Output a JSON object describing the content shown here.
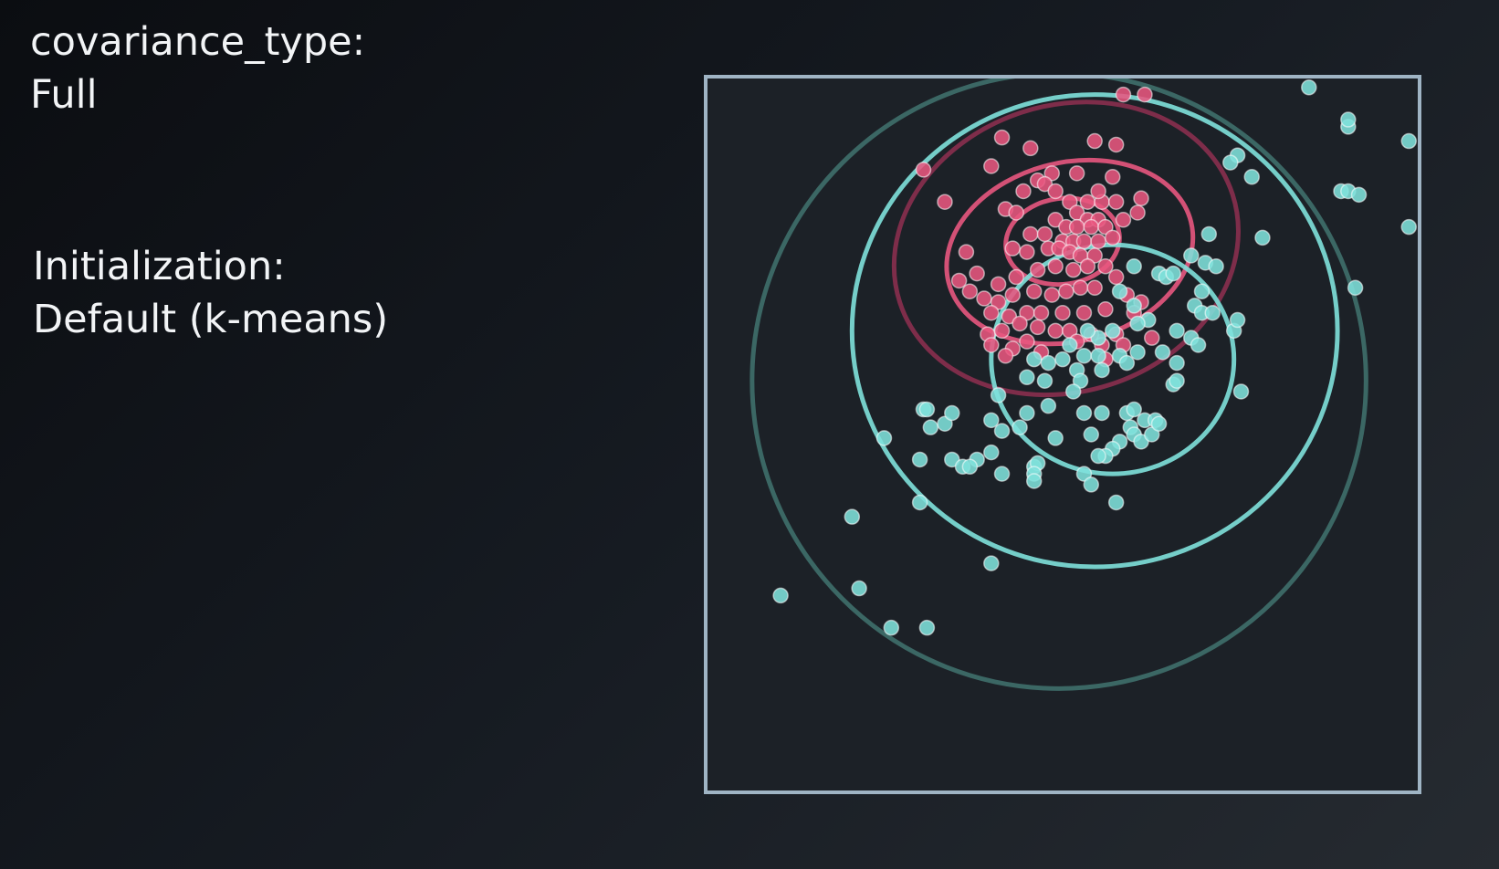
{
  "labels": {
    "covariance_title": "covariance_type:",
    "covariance_value": "Full",
    "init_title": "Initialization:",
    "init_value": "Default (k-means)"
  },
  "colors": {
    "frame": "#9fb4c4",
    "cluster_pink": "#e8577f",
    "cluster_teal": "#7fe1dc",
    "ellipse_pink_outer": "#8a2f4f",
    "ellipse_teal_outer": "#3f6f6c"
  },
  "chart_data": {
    "type": "scatter",
    "xlim": [
      0,
      100
    ],
    "ylim": [
      0,
      100
    ],
    "grid": false,
    "series": [
      {
        "cluster": "pink",
        "color": "#e8577f",
        "points": [
          [
            58.5,
            97.5
          ],
          [
            61.5,
            97.5
          ],
          [
            41.5,
            91.5
          ],
          [
            54.5,
            91
          ],
          [
            57.5,
            90.5
          ],
          [
            45.5,
            90
          ],
          [
            52,
            86.5
          ],
          [
            40,
            87.5
          ],
          [
            33.5,
            82.5
          ],
          [
            30.5,
            87
          ],
          [
            48.5,
            86.5
          ],
          [
            57,
            86
          ],
          [
            46.5,
            85.5
          ],
          [
            47.5,
            85
          ],
          [
            44.5,
            84
          ],
          [
            49,
            84
          ],
          [
            51,
            82.5
          ],
          [
            53.5,
            82.5
          ],
          [
            55.5,
            82.5
          ],
          [
            55,
            84
          ],
          [
            57.5,
            82.5
          ],
          [
            61,
            83
          ],
          [
            60.5,
            81
          ],
          [
            52,
            81
          ],
          [
            53.5,
            80
          ],
          [
            55,
            80
          ],
          [
            58.5,
            80
          ],
          [
            42,
            81.5
          ],
          [
            43.5,
            81
          ],
          [
            49,
            80
          ],
          [
            50.5,
            79
          ],
          [
            52,
            79
          ],
          [
            54,
            79
          ],
          [
            56,
            79
          ],
          [
            45.5,
            78
          ],
          [
            47.5,
            78
          ],
          [
            50,
            77
          ],
          [
            51.5,
            77
          ],
          [
            53,
            77
          ],
          [
            55,
            77
          ],
          [
            57,
            77.5
          ],
          [
            43,
            76
          ],
          [
            45,
            75.5
          ],
          [
            48,
            76
          ],
          [
            49.5,
            76
          ],
          [
            51,
            75.5
          ],
          [
            52.5,
            75
          ],
          [
            54.5,
            75
          ],
          [
            36.5,
            75.5
          ],
          [
            38,
            72.5
          ],
          [
            41,
            71
          ],
          [
            43.5,
            72
          ],
          [
            46.5,
            73
          ],
          [
            49,
            73.5
          ],
          [
            51.5,
            73
          ],
          [
            53.5,
            73.5
          ],
          [
            56,
            73.5
          ],
          [
            57.5,
            72
          ],
          [
            39,
            69
          ],
          [
            41,
            68.5
          ],
          [
            43,
            69.5
          ],
          [
            46,
            70
          ],
          [
            48.5,
            69.5
          ],
          [
            50.5,
            70
          ],
          [
            52.5,
            70.5
          ],
          [
            54.5,
            70.5
          ],
          [
            59,
            69.5
          ],
          [
            61,
            68.5
          ],
          [
            35.5,
            71.5
          ],
          [
            37,
            70
          ],
          [
            40,
            67
          ],
          [
            42.5,
            66.5
          ],
          [
            45,
            67
          ],
          [
            47,
            67
          ],
          [
            50,
            67
          ],
          [
            53,
            67
          ],
          [
            56,
            67.5
          ],
          [
            60,
            67
          ],
          [
            39.5,
            64
          ],
          [
            41.5,
            64.5
          ],
          [
            44,
            65.5
          ],
          [
            46.5,
            65
          ],
          [
            49,
            64.5
          ],
          [
            51,
            64.5
          ],
          [
            54,
            64
          ],
          [
            57.5,
            64
          ],
          [
            62.5,
            63.5
          ],
          [
            40,
            62.5
          ],
          [
            43,
            62
          ],
          [
            45,
            63
          ],
          [
            52,
            63
          ],
          [
            55.5,
            62.5
          ],
          [
            58.5,
            62.5
          ],
          [
            42,
            61
          ],
          [
            47,
            61.5
          ],
          [
            56,
            60.5
          ]
        ]
      },
      {
        "cluster": "teal",
        "color": "#7fe1dc",
        "points": [
          [
            84.5,
            98.5
          ],
          [
            90,
            93
          ],
          [
            90,
            94
          ],
          [
            98.5,
            91
          ],
          [
            74.5,
            89
          ],
          [
            73.5,
            88
          ],
          [
            76.5,
            86
          ],
          [
            89,
            84
          ],
          [
            90,
            84
          ],
          [
            91.5,
            83.5
          ],
          [
            98.5,
            79
          ],
          [
            70.5,
            78
          ],
          [
            78,
            77.5
          ],
          [
            68,
            75
          ],
          [
            70,
            74
          ],
          [
            71.5,
            73.5
          ],
          [
            60,
            73.5
          ],
          [
            63.5,
            72.5
          ],
          [
            64.5,
            72
          ],
          [
            65.5,
            72.5
          ],
          [
            91,
            70.5
          ],
          [
            69.5,
            70
          ],
          [
            58,
            70
          ],
          [
            60,
            68
          ],
          [
            68.5,
            68
          ],
          [
            69.5,
            67
          ],
          [
            71,
            67
          ],
          [
            62,
            66
          ],
          [
            60.5,
            65.5
          ],
          [
            66,
            64.5
          ],
          [
            68,
            63.5
          ],
          [
            74,
            64.5
          ],
          [
            74.5,
            66
          ],
          [
            55,
            63.5
          ],
          [
            57,
            64.5
          ],
          [
            53.5,
            64.5
          ],
          [
            51,
            62.5
          ],
          [
            53,
            61
          ],
          [
            55,
            61
          ],
          [
            58,
            61
          ],
          [
            64,
            61.5
          ],
          [
            66,
            60
          ],
          [
            69,
            62.5
          ],
          [
            46,
            60.5
          ],
          [
            48,
            60
          ],
          [
            50,
            60.5
          ],
          [
            52,
            59
          ],
          [
            55.5,
            59
          ],
          [
            59,
            60
          ],
          [
            60.5,
            61.5
          ],
          [
            65.5,
            57
          ],
          [
            66,
            57.5
          ],
          [
            45,
            58
          ],
          [
            47.5,
            57.5
          ],
          [
            52.5,
            57.5
          ],
          [
            48,
            54
          ],
          [
            51.5,
            56
          ],
          [
            41,
            55.5
          ],
          [
            40,
            52
          ],
          [
            53,
            53
          ],
          [
            55.5,
            53
          ],
          [
            59,
            53
          ],
          [
            60,
            53.5
          ],
          [
            61.5,
            52
          ],
          [
            63,
            52
          ],
          [
            75,
            56
          ],
          [
            45,
            53
          ],
          [
            44,
            51
          ],
          [
            41.5,
            50.5
          ],
          [
            33.5,
            51.5
          ],
          [
            31.5,
            51
          ],
          [
            30.5,
            53.5
          ],
          [
            34.5,
            53
          ],
          [
            31,
            53.5
          ],
          [
            49,
            49.5
          ],
          [
            54,
            50
          ],
          [
            58,
            49
          ],
          [
            57,
            48
          ],
          [
            56,
            47
          ],
          [
            59.5,
            51
          ],
          [
            60,
            50
          ],
          [
            61,
            49
          ],
          [
            62.5,
            50
          ],
          [
            63.5,
            51.5
          ],
          [
            55,
            47
          ],
          [
            25,
            49.5
          ],
          [
            30,
            46.5
          ],
          [
            38,
            46.5
          ],
          [
            40,
            47.5
          ],
          [
            34.5,
            46.5
          ],
          [
            36,
            45.5
          ],
          [
            37,
            45.5
          ],
          [
            41.5,
            44.5
          ],
          [
            46,
            45.5
          ],
          [
            46.5,
            46
          ],
          [
            46,
            44.5
          ],
          [
            46,
            43.5
          ],
          [
            53,
            44.5
          ],
          [
            54,
            43
          ],
          [
            57.5,
            40.5
          ],
          [
            30,
            40.5
          ],
          [
            20.5,
            38.5
          ],
          [
            40,
            32
          ],
          [
            21.5,
            28.5
          ],
          [
            10.5,
            27.5
          ],
          [
            26,
            23
          ],
          [
            31,
            23
          ]
        ]
      }
    ],
    "ellipses": [
      {
        "cluster": "pink",
        "center": [
          50.5,
          76
        ],
        "rx": 24.5,
        "ry": 20,
        "angle": -18,
        "color": "#8a2f4f"
      },
      {
        "cluster": "pink",
        "center": [
          51,
          75.5
        ],
        "rx": 17.5,
        "ry": 12.5,
        "angle": -14,
        "color": "#e8577f"
      },
      {
        "cluster": "pink",
        "center": [
          50,
          77
        ],
        "rx": 8,
        "ry": 6,
        "angle": -8,
        "color": "#e8577f"
      },
      {
        "cluster": "teal",
        "center": [
          49.5,
          57.5
        ],
        "rx": 43,
        "ry": 43,
        "angle": 0,
        "color": "#3f6f6c"
      },
      {
        "cluster": "teal",
        "center": [
          54.5,
          64.5
        ],
        "rx": 34,
        "ry": 33,
        "angle": 0,
        "color": "#7fe1dc"
      },
      {
        "cluster": "teal",
        "center": [
          57,
          60.5
        ],
        "rx": 17,
        "ry": 16,
        "angle": 0,
        "color": "#7fe1dc"
      }
    ]
  }
}
